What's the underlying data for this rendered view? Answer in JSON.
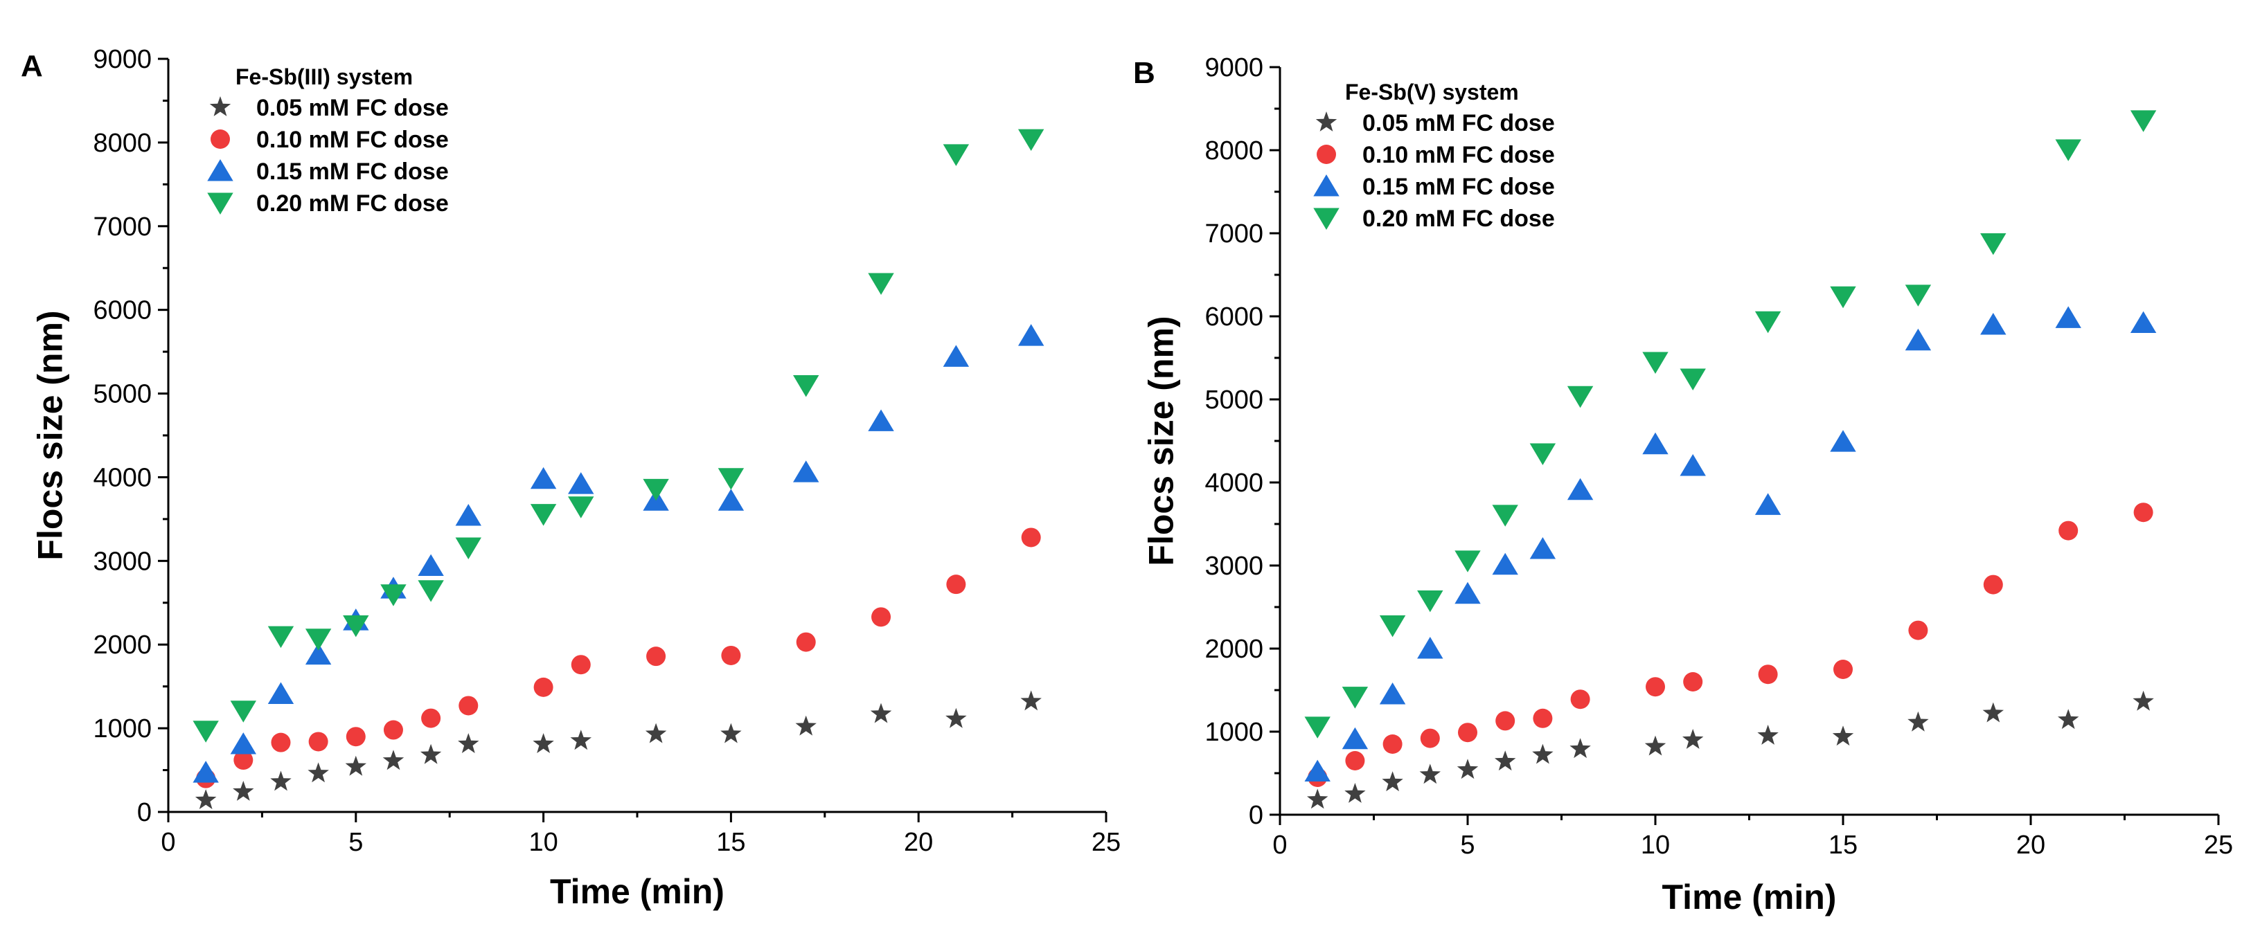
{
  "chart_data": [
    {
      "type": "scatter",
      "panel_label": "A",
      "title": "",
      "xlabel": "Time (min)",
      "ylabel": "Flocs size (nm)",
      "xlim": [
        0,
        25
      ],
      "ylim": [
        0,
        9000
      ],
      "xticks": [
        0,
        5,
        10,
        15,
        20,
        25
      ],
      "yticks": [
        0,
        1000,
        2000,
        3000,
        4000,
        5000,
        6000,
        7000,
        8000,
        9000
      ],
      "grid": false,
      "legend_title": "Fe-Sb(III) system",
      "legend_position": "top-left",
      "x": [
        1,
        2,
        3,
        4,
        5,
        6,
        7,
        8,
        10,
        11,
        13,
        15,
        17,
        19,
        21,
        23
      ],
      "series": [
        {
          "name": "0.05 mM FC dose",
          "marker": "star",
          "color": "#404040",
          "values": [
            140,
            240,
            360,
            460,
            540,
            610,
            680,
            810,
            810,
            850,
            930,
            930,
            1020,
            1170,
            1110,
            1320
          ]
        },
        {
          "name": "0.10 mM FC dose",
          "marker": "circle",
          "color": "#ee3b3b",
          "values": [
            400,
            620,
            830,
            840,
            900,
            980,
            1120,
            1270,
            1490,
            1760,
            1860,
            1870,
            2030,
            2330,
            2720,
            3280
          ]
        },
        {
          "name": "0.15 mM FC dose",
          "marker": "triangle-up",
          "color": "#1f6fd9",
          "values": [
            470,
            810,
            1410,
            1880,
            2290,
            2670,
            2940,
            3540,
            3980,
            3920,
            3720,
            3720,
            4060,
            4670,
            5440,
            5690
          ]
        },
        {
          "name": "0.20 mM FC dose",
          "marker": "triangle-down",
          "color": "#18ad5c",
          "values": [
            970,
            1210,
            2100,
            2070,
            2230,
            2600,
            2650,
            3160,
            3560,
            3650,
            3860,
            3990,
            5100,
            6320,
            7860,
            8040
          ]
        }
      ]
    },
    {
      "type": "scatter",
      "panel_label": "B",
      "title": "",
      "xlabel": "Time (min)",
      "ylabel": "Flocs size (nm)",
      "xlim": [
        0,
        25
      ],
      "ylim": [
        0,
        9000
      ],
      "xticks": [
        0,
        5,
        10,
        15,
        20,
        25
      ],
      "yticks": [
        0,
        1000,
        2000,
        3000,
        4000,
        5000,
        6000,
        7000,
        8000,
        9000
      ],
      "grid": false,
      "legend_title": "Fe-Sb(V) system",
      "legend_position": "top-left",
      "x": [
        1,
        2,
        3,
        4,
        5,
        6,
        7,
        8,
        10,
        11,
        13,
        15,
        17,
        19,
        21,
        23
      ],
      "series": [
        {
          "name": "0.05 mM FC dose",
          "marker": "star",
          "color": "#404040",
          "values": [
            180,
            250,
            390,
            480,
            540,
            640,
            720,
            790,
            820,
            900,
            950,
            940,
            1110,
            1220,
            1140,
            1360
          ]
        },
        {
          "name": "0.10 mM FC dose",
          "marker": "circle",
          "color": "#ee3b3b",
          "values": [
            450,
            650,
            850,
            920,
            990,
            1130,
            1160,
            1390,
            1540,
            1600,
            1690,
            1750,
            2220,
            2770,
            3420,
            3640
          ]
        },
        {
          "name": "0.15 mM FC dose",
          "marker": "triangle-up",
          "color": "#1f6fd9",
          "values": [
            520,
            910,
            1450,
            2000,
            2660,
            3010,
            3200,
            3910,
            4460,
            4200,
            3730,
            4490,
            5710,
            5900,
            5980,
            5920
          ]
        },
        {
          "name": "0.20 mM FC dose",
          "marker": "triangle-down",
          "color": "#18ad5c",
          "values": [
            1060,
            1420,
            2280,
            2580,
            3060,
            3610,
            4350,
            5040,
            5450,
            5250,
            5940,
            6240,
            6260,
            6880,
            8010,
            8360
          ]
        }
      ]
    }
  ]
}
